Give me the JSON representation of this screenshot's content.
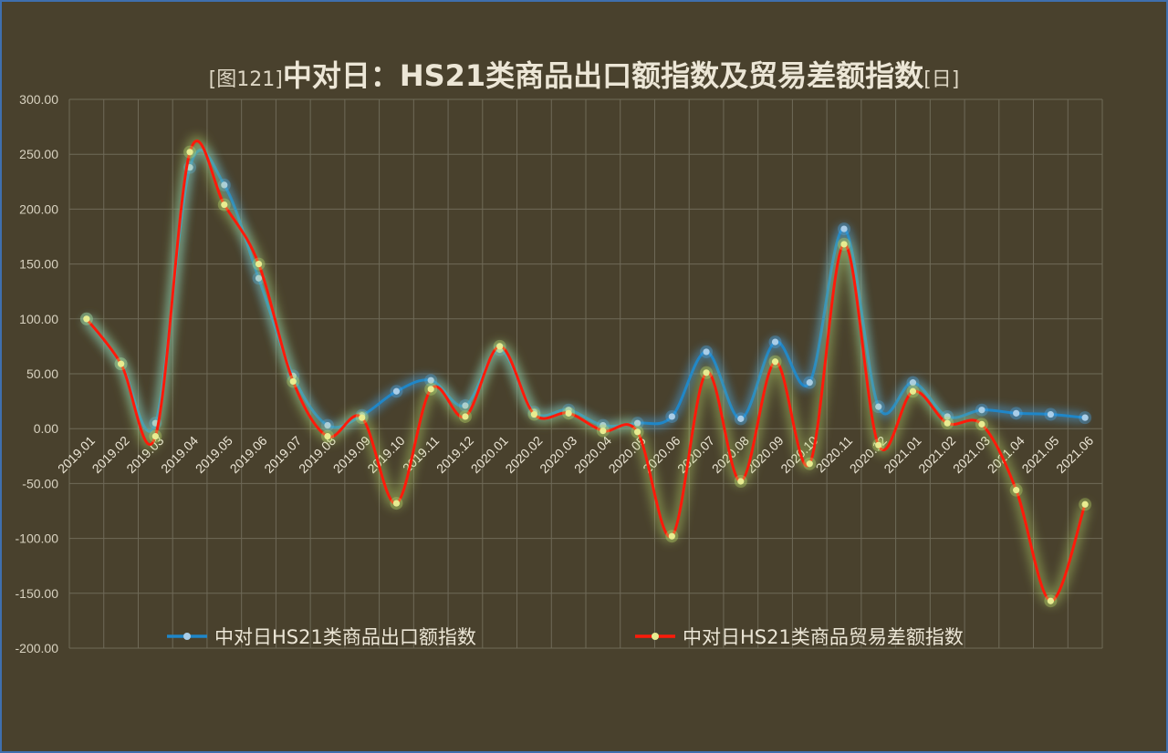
{
  "title": {
    "prefix": "[图121]",
    "main": "中对日：HS21类商品出口额指数及贸易差额指数",
    "suffix": "[日]"
  },
  "colors": {
    "background": "#49412d",
    "border": "#3f6fae",
    "grid": "#6f6a58",
    "export_line": "#1f86c8",
    "export_marker": "#a9cde8",
    "balance_line": "#ff1a0a",
    "balance_marker": "#e8ec90",
    "glow": "#b9d96a"
  },
  "chart_data": {
    "type": "line",
    "title": "[图121]中对日：HS21类商品出口额指数及贸易差额指数[日]",
    "categories": [
      "2019.01",
      "2019.02",
      "2019.03",
      "2019.04",
      "2019.05",
      "2019.06",
      "2019.07",
      "2019.08",
      "2019.09",
      "2019.10",
      "2019.11",
      "2019.12",
      "2020.01",
      "2020.02",
      "2020.03",
      "2020.04",
      "2020.05",
      "2020.06",
      "2020.07",
      "2020.08",
      "2020.09",
      "2020.10",
      "2020.11",
      "2020.12",
      "2021.01",
      "2021.02",
      "2021.03",
      "2021.04",
      "2021.05",
      "2021.06"
    ],
    "series": [
      {
        "name": "中对日HS21类商品出口额指数",
        "values": [
          100,
          59,
          5,
          238,
          222,
          137,
          48,
          3,
          12,
          34,
          44,
          21,
          72,
          15,
          17,
          3,
          5,
          11,
          70,
          9,
          79,
          42,
          182,
          20,
          42,
          11,
          17,
          14,
          13,
          10
        ]
      },
      {
        "name": "中对日HS21类商品贸易差额指数",
        "values": [
          100,
          59,
          -7,
          252,
          204,
          150,
          43,
          -7,
          10,
          -68,
          36,
          11,
          75,
          13,
          14,
          -2,
          -3,
          -98,
          51,
          -48,
          61,
          -32,
          168,
          -15,
          34,
          5,
          4,
          -56,
          -157,
          -69
        ]
      }
    ],
    "ylim": [
      -200,
      300
    ],
    "yticks": [
      "300.00",
      "250.00",
      "200.00",
      "150.00",
      "100.00",
      "50.00",
      "0.00",
      "-50.00",
      "-100.00",
      "-150.00",
      "-200.00"
    ],
    "grid": true,
    "legend_position": "bottom"
  }
}
